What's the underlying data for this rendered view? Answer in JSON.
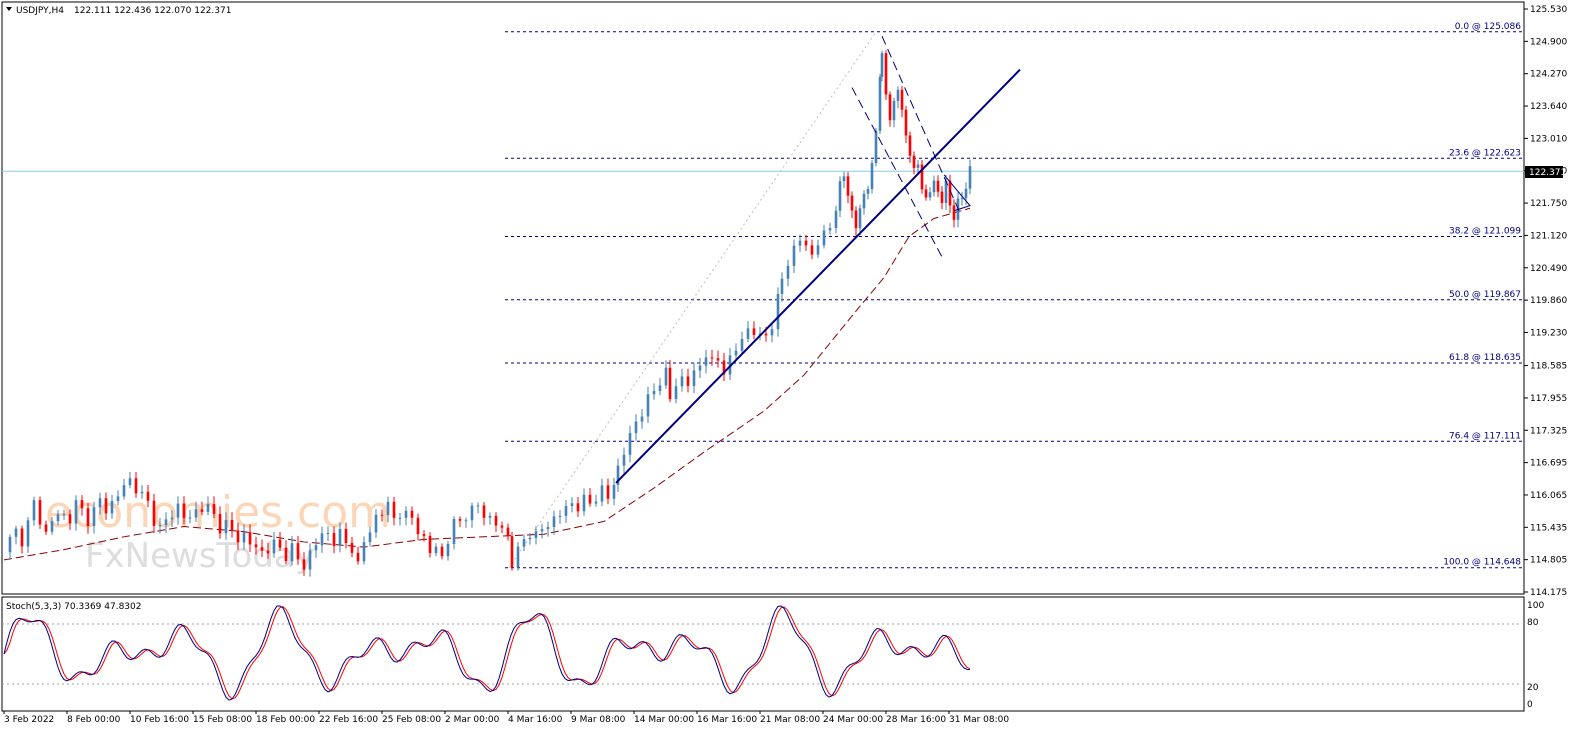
{
  "header": {
    "symbol": "USDJPY,H4",
    "ohlc": "122.111 122.436 122.070 122.371"
  },
  "indicator": {
    "label": "Stoch(5,3,3) 70.3369 47.8302",
    "levels": [
      "100",
      "80",
      "20",
      "0"
    ]
  },
  "watermark": {
    "line1": "economies.com",
    "line2": "FxNewsToday"
  },
  "colors": {
    "bull": "#4682b4",
    "bear": "#ff0000",
    "trend": "#000080",
    "ma": "#8b0000",
    "stoch_main": "#000080",
    "stoch_signal": "#ff0000",
    "price_line": "#87ceeb"
  },
  "chart_data": {
    "type": "candlestick",
    "symbol": "USDJPY",
    "timeframe": "H4",
    "current_price": "122.371",
    "ylim": [
      114.175,
      125.53
    ],
    "y_ticks": [
      "125.530",
      "124.900",
      "124.270",
      "123.640",
      "123.010",
      "122.380",
      "121.750",
      "121.120",
      "120.490",
      "119.860",
      "119.230",
      "118.585",
      "117.955",
      "117.325",
      "116.695",
      "116.065",
      "115.435",
      "114.805",
      "114.175"
    ],
    "x_labels": [
      "3 Feb 2022",
      "8 Feb 00:00",
      "10 Feb 16:00",
      "15 Feb 08:00",
      "18 Feb 00:00",
      "22 Feb 16:00",
      "25 Feb 08:00",
      "2 Mar 00:00",
      "4 Mar 16:00",
      "9 Mar 08:00",
      "14 Mar 00:00",
      "16 Mar 16:00",
      "21 Mar 08:00",
      "24 Mar 00:00",
      "28 Mar 16:00",
      "31 Mar 08:00"
    ],
    "fibonacci": [
      {
        "label": "0.0 @ 125.086",
        "price": 125.086
      },
      {
        "label": "23.6 @ 122.623",
        "price": 122.623
      },
      {
        "label": "38.2 @ 121.099",
        "price": 121.099
      },
      {
        "label": "50.0 @ 119.867",
        "price": 119.867
      },
      {
        "label": "61.8 @ 118.635",
        "price": 118.635
      },
      {
        "label": "76.4 @ 117.111",
        "price": 117.111
      },
      {
        "label": "100.0 @ 114.648",
        "price": 114.648
      }
    ],
    "close_path": [
      [
        0,
        114.95
      ],
      [
        6,
        115.2
      ],
      [
        12,
        115.35
      ],
      [
        18,
        115.2
      ],
      [
        24,
        115.5
      ],
      [
        30,
        115.9
      ],
      [
        36,
        115.6
      ],
      [
        42,
        115.3
      ],
      [
        48,
        115.55
      ],
      [
        54,
        115.7
      ],
      [
        60,
        115.65
      ],
      [
        66,
        115.6
      ],
      [
        72,
        115.9
      ],
      [
        78,
        115.75
      ],
      [
        84,
        115.6
      ],
      [
        90,
        115.75
      ],
      [
        96,
        115.95
      ],
      [
        102,
        115.8
      ],
      [
        108,
        115.9
      ],
      [
        114,
        116.05
      ],
      [
        120,
        116.25
      ],
      [
        126,
        116.35
      ],
      [
        132,
        116.2
      ],
      [
        138,
        116.05
      ],
      [
        144,
        115.9
      ],
      [
        150,
        115.6
      ],
      [
        156,
        115.4
      ],
      [
        162,
        115.55
      ],
      [
        168,
        115.7
      ],
      [
        174,
        115.85
      ],
      [
        180,
        115.65
      ],
      [
        186,
        115.6
      ],
      [
        192,
        115.75
      ],
      [
        198,
        115.85
      ],
      [
        204,
        115.8
      ],
      [
        210,
        115.65
      ],
      [
        216,
        115.45
      ],
      [
        222,
        115.5
      ],
      [
        228,
        115.35
      ],
      [
        234,
        115.2
      ],
      [
        240,
        115.3
      ],
      [
        246,
        115.15
      ],
      [
        252,
        115.0
      ],
      [
        258,
        114.95
      ],
      [
        264,
        115.05
      ],
      [
        270,
        115.1
      ],
      [
        276,
        115.0
      ],
      [
        282,
        114.9
      ],
      [
        288,
        115.05
      ],
      [
        294,
        114.8
      ],
      [
        300,
        114.65
      ],
      [
        306,
        114.95
      ],
      [
        312,
        115.15
      ],
      [
        318,
        115.25
      ],
      [
        324,
        115.3
      ],
      [
        330,
        115.2
      ],
      [
        336,
        115.3
      ],
      [
        342,
        115.1
      ],
      [
        348,
        115.05
      ],
      [
        354,
        114.7
      ],
      [
        360,
        115.15
      ],
      [
        366,
        115.35
      ],
      [
        372,
        115.65
      ],
      [
        378,
        115.75
      ],
      [
        384,
        115.85
      ],
      [
        390,
        115.6
      ],
      [
        396,
        115.75
      ],
      [
        402,
        115.65
      ],
      [
        408,
        115.6
      ],
      [
        414,
        115.4
      ],
      [
        420,
        115.2
      ],
      [
        426,
        114.95
      ],
      [
        432,
        115.05
      ],
      [
        438,
        114.85
      ],
      [
        444,
        115.2
      ],
      [
        450,
        115.5
      ],
      [
        456,
        115.55
      ],
      [
        462,
        115.7
      ],
      [
        468,
        115.75
      ],
      [
        474,
        115.85
      ],
      [
        480,
        115.7
      ],
      [
        486,
        115.6
      ],
      [
        492,
        115.5
      ],
      [
        498,
        115.4
      ],
      [
        504,
        115.25
      ],
      [
        508,
        114.75
      ],
      [
        514,
        114.95
      ],
      [
        520,
        115.2
      ],
      [
        526,
        115.35
      ],
      [
        532,
        115.25
      ],
      [
        538,
        115.4
      ],
      [
        544,
        115.5
      ],
      [
        550,
        115.6
      ],
      [
        556,
        115.7
      ],
      [
        562,
        115.8
      ],
      [
        568,
        115.9
      ],
      [
        574,
        115.85
      ],
      [
        580,
        115.95
      ],
      [
        586,
        115.9
      ],
      [
        592,
        116.05
      ],
      [
        598,
        116.15
      ],
      [
        604,
        116.0
      ],
      [
        610,
        116.3
      ],
      [
        614,
        116.6
      ],
      [
        620,
        116.9
      ],
      [
        626,
        117.2
      ],
      [
        632,
        117.5
      ],
      [
        638,
        117.7
      ],
      [
        644,
        117.9
      ],
      [
        650,
        118.1
      ],
      [
        656,
        118.3
      ],
      [
        662,
        118.45
      ],
      [
        666,
        117.95
      ],
      [
        672,
        118.2
      ],
      [
        678,
        118.35
      ],
      [
        684,
        118.25
      ],
      [
        690,
        118.4
      ],
      [
        696,
        118.6
      ],
      [
        702,
        118.85
      ],
      [
        708,
        118.6
      ],
      [
        714,
        118.7
      ],
      [
        720,
        118.5
      ],
      [
        726,
        118.7
      ],
      [
        732,
        118.9
      ],
      [
        738,
        119.1
      ],
      [
        744,
        119.3
      ],
      [
        750,
        119.25
      ],
      [
        756,
        119.1
      ],
      [
        762,
        119.2
      ],
      [
        768,
        119.4
      ],
      [
        774,
        119.85
      ],
      [
        778,
        120.3
      ],
      [
        784,
        120.6
      ],
      [
        790,
        120.85
      ],
      [
        796,
        121.05
      ],
      [
        802,
        120.9
      ],
      [
        808,
        120.75
      ],
      [
        814,
        121.0
      ],
      [
        820,
        121.1
      ],
      [
        826,
        121.3
      ],
      [
        832,
        121.7
      ],
      [
        836,
        122.05
      ],
      [
        840,
        122.3
      ],
      [
        844,
        121.95
      ],
      [
        848,
        121.55
      ],
      [
        852,
        121.3
      ],
      [
        856,
        121.6
      ],
      [
        860,
        121.95
      ],
      [
        864,
        122.1
      ],
      [
        868,
        122.4
      ],
      [
        872,
        123.2
      ],
      [
        876,
        124.3
      ],
      [
        878,
        124.55
      ],
      [
        882,
        123.9
      ],
      [
        886,
        123.4
      ],
      [
        890,
        123.7
      ],
      [
        894,
        124.0
      ],
      [
        898,
        123.5
      ],
      [
        902,
        123.1
      ],
      [
        906,
        122.75
      ],
      [
        910,
        122.3
      ],
      [
        914,
        122.55
      ],
      [
        918,
        122.1
      ],
      [
        922,
        121.75
      ],
      [
        926,
        122.0
      ],
      [
        930,
        122.2
      ],
      [
        934,
        121.95
      ],
      [
        938,
        121.8
      ],
      [
        942,
        122.1
      ],
      [
        946,
        121.75
      ],
      [
        950,
        121.5
      ],
      [
        954,
        121.7
      ],
      [
        958,
        121.9
      ],
      [
        962,
        122.1
      ],
      [
        966,
        122.371
      ]
    ],
    "ma_path": [
      [
        0,
        114.8
      ],
      [
        60,
        115.0
      ],
      [
        120,
        115.25
      ],
      [
        180,
        115.45
      ],
      [
        240,
        115.35
      ],
      [
        300,
        115.15
      ],
      [
        360,
        115.05
      ],
      [
        420,
        115.2
      ],
      [
        480,
        115.25
      ],
      [
        540,
        115.3
      ],
      [
        600,
        115.55
      ],
      [
        650,
        116.2
      ],
      [
        700,
        116.9
      ],
      [
        760,
        117.7
      ],
      [
        800,
        118.4
      ],
      [
        850,
        119.6
      ],
      [
        880,
        120.3
      ],
      [
        905,
        121.1
      ],
      [
        930,
        121.45
      ],
      [
        966,
        121.65
      ]
    ],
    "trendline_up": [
      [
        612,
        116.3
      ],
      [
        1016,
        124.35
      ]
    ],
    "channel_upper": [
      [
        878,
        125.0
      ],
      [
        955,
        121.6
      ]
    ],
    "channel_lower": [
      [
        848,
        124.0
      ],
      [
        938,
        120.7
      ]
    ],
    "triangle_apex": [
      [
        940,
        122.3
      ],
      [
        966,
        121.7
      ],
      [
        950,
        121.6
      ]
    ],
    "stochastic": {
      "range": [
        0,
        100
      ],
      "levels": [
        80,
        20
      ]
    }
  }
}
